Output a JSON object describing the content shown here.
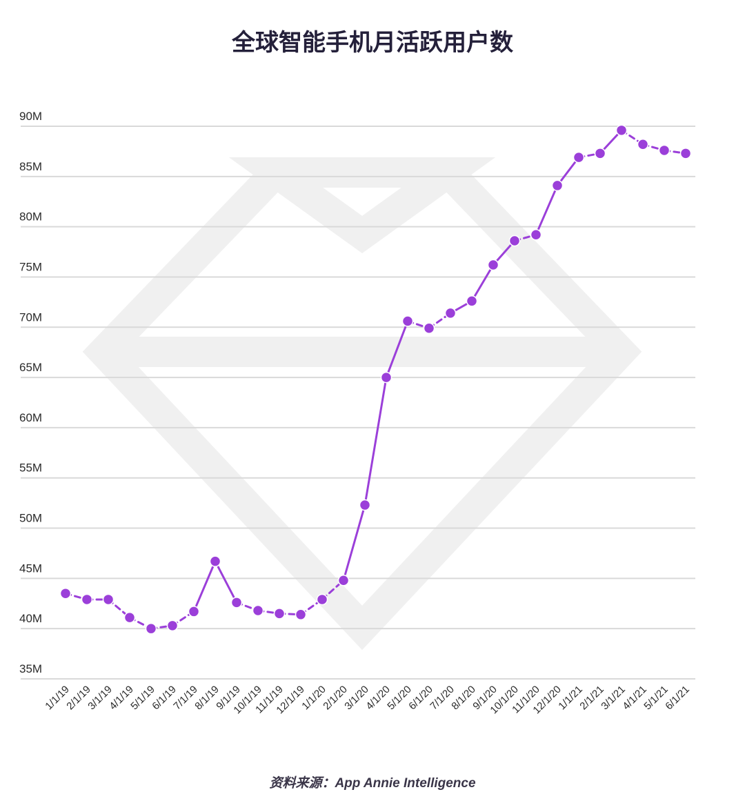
{
  "chart_data": {
    "type": "line",
    "title": "全球智能手机月活跃用户数",
    "source": "资料来源：App Annie Intelligence",
    "y_tick_labels": [
      "35M",
      "40M",
      "45M",
      "50M",
      "55M",
      "60M",
      "65M",
      "70M",
      "75M",
      "80M",
      "85M",
      "90M"
    ],
    "y_ticks": [
      35,
      40,
      45,
      50,
      55,
      60,
      65,
      70,
      75,
      80,
      85,
      90
    ],
    "ylim": [
      35,
      90
    ],
    "categories": [
      "1/1/19",
      "2/1/19",
      "3/1/19",
      "4/1/19",
      "5/1/19",
      "6/1/19",
      "7/1/19",
      "8/1/19",
      "9/1/19",
      "10/1/19",
      "11/1/19",
      "12/1/19",
      "1/1/20",
      "2/1/20",
      "3/1/20",
      "4/1/20",
      "5/1/20",
      "6/1/20",
      "7/1/20",
      "8/1/20",
      "9/1/20",
      "10/1/20",
      "11/1/20",
      "12/1/20",
      "1/1/21",
      "2/1/21",
      "3/1/21",
      "4/1/21",
      "5/1/21",
      "6/1/21"
    ],
    "series": [
      {
        "values": [
          43.5,
          42.9,
          42.9,
          41.1,
          40.0,
          40.3,
          41.7,
          46.7,
          42.6,
          41.8,
          41.5,
          41.4,
          42.9,
          44.8,
          52.3,
          65.0,
          70.6,
          69.9,
          71.4,
          72.6,
          76.2,
          78.6,
          79.2,
          84.1,
          86.9,
          87.3,
          89.6,
          88.2,
          87.6,
          87.3
        ],
        "color": "#9b3fd9"
      }
    ],
    "grid": true,
    "line_style": "mixed solid and dashed segments with circular markers"
  },
  "colors": {
    "series": "#9b3fd9",
    "gridline": "#d9d9d9",
    "watermark": "#f1f1f1",
    "title": "#24203a"
  }
}
